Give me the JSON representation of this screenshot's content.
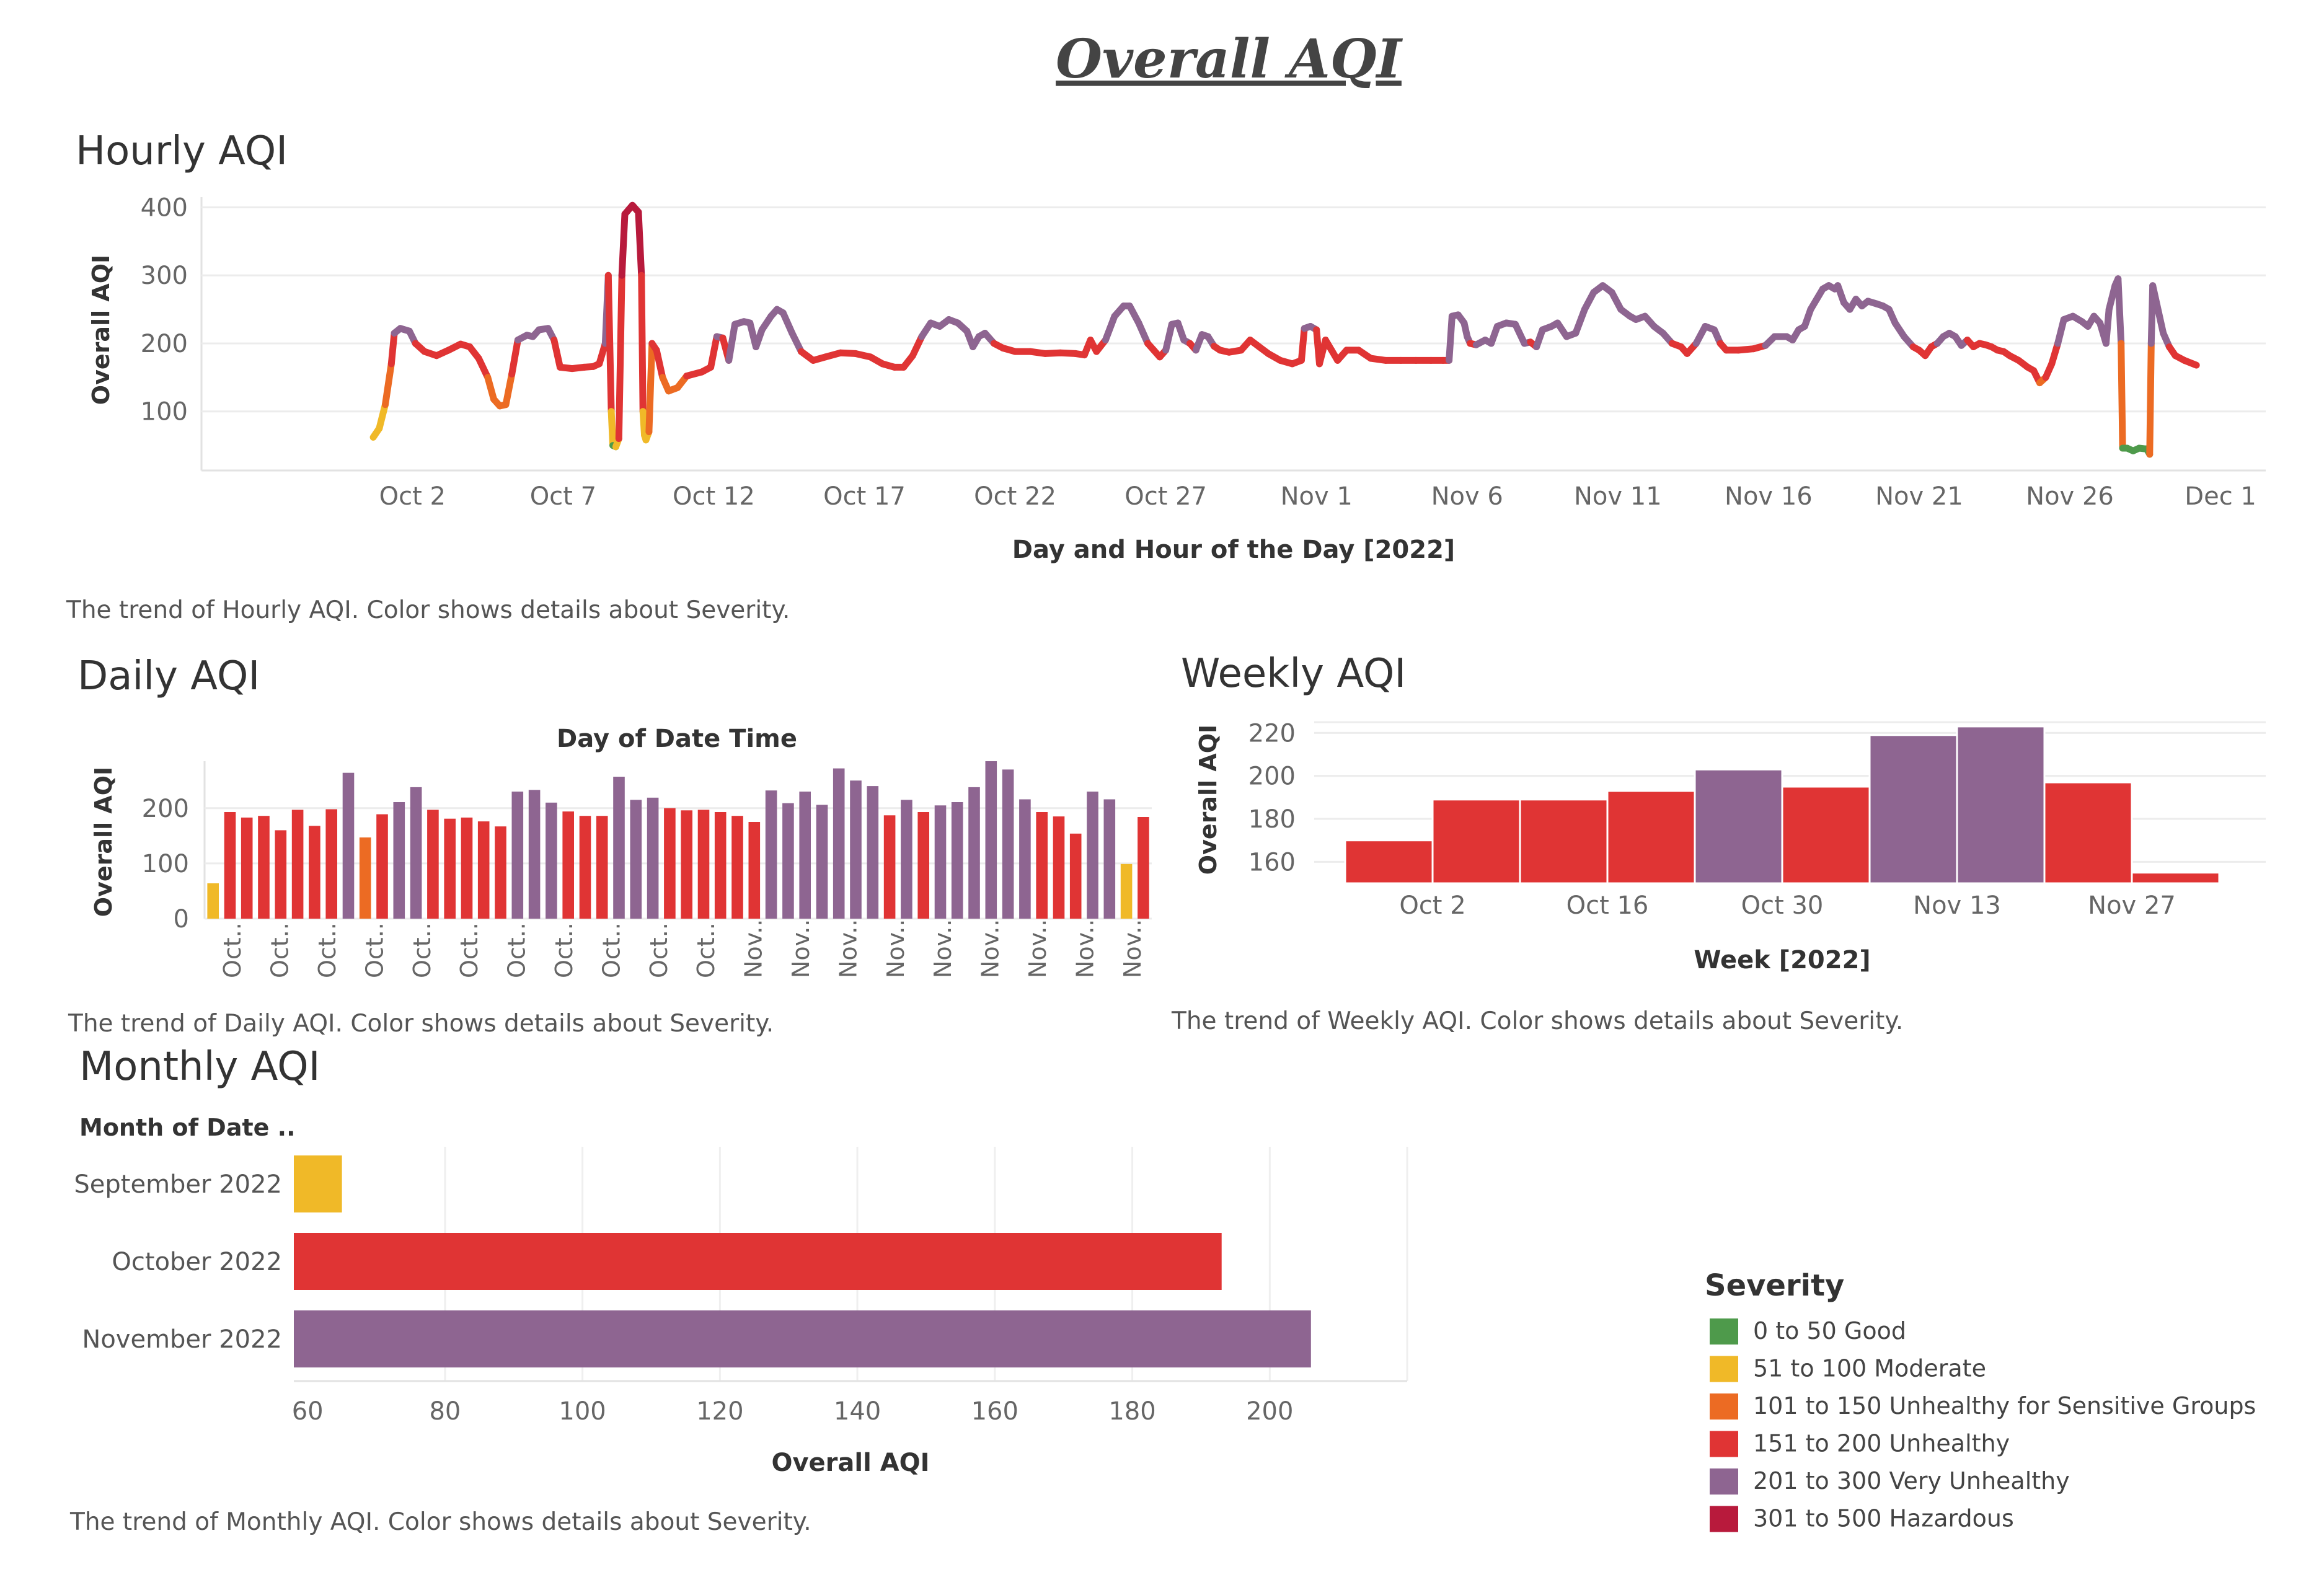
{
  "page": {
    "title": "Overall AQI"
  },
  "colors": {
    "good": "#4e9a4b",
    "moderate": "#f0b928",
    "usg": "#ec6b23",
    "unhealthy": "#e03434",
    "very_unhealthy": "#8e6591",
    "hazardous": "#b81a3c",
    "grid": "#ececec",
    "text": "#333333",
    "tick": "#666666"
  },
  "legend": {
    "title": "Severity",
    "items": [
      {
        "label": "0 to 50 Good",
        "color": "#4e9a4b"
      },
      {
        "label": "51 to 100 Moderate",
        "color": "#f0b928"
      },
      {
        "label": "101 to 150 Unhealthy for Sensitive Groups",
        "color": "#ec6b23"
      },
      {
        "label": "151 to 200 Unhealthy",
        "color": "#e03434"
      },
      {
        "label": "201 to 300 Very Unhealthy",
        "color": "#8e6591"
      },
      {
        "label": "301 to 500 Hazardous",
        "color": "#b81a3c"
      }
    ]
  },
  "chart_data": [
    {
      "id": "hourly",
      "type": "line",
      "title": "Hourly AQI",
      "xlabel": "Day and Hour of the Day [2022]",
      "ylabel": "Overall AQI",
      "caption": "The trend of Hourly AQI.  Color shows details about Severity.",
      "xlim": [
        -6.0,
        62.5
      ],
      "ylim": [
        15,
        415
      ],
      "y_ticks": [
        100,
        200,
        300,
        400
      ],
      "x_ticks": [
        {
          "x": 1,
          "label": "Oct 2"
        },
        {
          "x": 6,
          "label": "Oct 7"
        },
        {
          "x": 11,
          "label": "Oct 12"
        },
        {
          "x": 16,
          "label": "Oct 17"
        },
        {
          "x": 21,
          "label": "Oct 22"
        },
        {
          "x": 26,
          "label": "Oct 27"
        },
        {
          "x": 31,
          "label": "Nov 1"
        },
        {
          "x": 36,
          "label": "Nov 6"
        },
        {
          "x": 41,
          "label": "Nov 11"
        },
        {
          "x": 46,
          "label": "Nov 16"
        },
        {
          "x": 51,
          "label": "Nov 21"
        },
        {
          "x": 56,
          "label": "Nov 26"
        },
        {
          "x": 61,
          "label": "Dec 1"
        }
      ],
      "points": [
        [
          -0.3,
          62
        ],
        [
          -0.1,
          75
        ],
        [
          0.1,
          110
        ],
        [
          0.3,
          170
        ],
        [
          0.4,
          215
        ],
        [
          0.6,
          222
        ],
        [
          0.9,
          218
        ],
        [
          1.1,
          200
        ],
        [
          1.4,
          188
        ],
        [
          1.8,
          182
        ],
        [
          2.2,
          190
        ],
        [
          2.6,
          199
        ],
        [
          2.9,
          195
        ],
        [
          3.2,
          178
        ],
        [
          3.5,
          150
        ],
        [
          3.7,
          118
        ],
        [
          3.9,
          108
        ],
        [
          4.1,
          110
        ],
        [
          4.3,
          155
        ],
        [
          4.5,
          205
        ],
        [
          4.8,
          212
        ],
        [
          5.0,
          210
        ],
        [
          5.2,
          220
        ],
        [
          5.5,
          222
        ],
        [
          5.7,
          205
        ],
        [
          5.9,
          165
        ],
        [
          6.3,
          163
        ],
        [
          6.7,
          165
        ],
        [
          7.0,
          166
        ],
        [
          7.2,
          170
        ],
        [
          7.4,
          200
        ],
        [
          7.5,
          300
        ],
        [
          7.6,
          100
        ],
        [
          7.65,
          50
        ],
        [
          7.75,
          48
        ],
        [
          7.85,
          60
        ],
        [
          7.95,
          300
        ],
        [
          8.05,
          390
        ],
        [
          8.3,
          403
        ],
        [
          8.5,
          393
        ],
        [
          8.6,
          300
        ],
        [
          8.65,
          100
        ],
        [
          8.7,
          65
        ],
        [
          8.75,
          58
        ],
        [
          8.85,
          70
        ],
        [
          8.95,
          200
        ],
        [
          9.1,
          190
        ],
        [
          9.3,
          150
        ],
        [
          9.5,
          130
        ],
        [
          9.8,
          135
        ],
        [
          10.1,
          152
        ],
        [
          10.6,
          158
        ],
        [
          10.9,
          165
        ],
        [
          11.1,
          210
        ],
        [
          11.3,
          208
        ],
        [
          11.5,
          175
        ],
        [
          11.7,
          228
        ],
        [
          12.0,
          232
        ],
        [
          12.2,
          230
        ],
        [
          12.4,
          195
        ],
        [
          12.6,
          220
        ],
        [
          12.9,
          240
        ],
        [
          13.1,
          250
        ],
        [
          13.3,
          245
        ],
        [
          13.6,
          215
        ],
        [
          13.9,
          188
        ],
        [
          14.3,
          175
        ],
        [
          14.7,
          180
        ],
        [
          15.2,
          186
        ],
        [
          15.7,
          185
        ],
        [
          16.2,
          180
        ],
        [
          16.6,
          170
        ],
        [
          17.0,
          165
        ],
        [
          17.3,
          165
        ],
        [
          17.6,
          182
        ],
        [
          17.9,
          210
        ],
        [
          18.2,
          230
        ],
        [
          18.5,
          225
        ],
        [
          18.8,
          235
        ],
        [
          19.1,
          230
        ],
        [
          19.4,
          218
        ],
        [
          19.6,
          195
        ],
        [
          19.8,
          210
        ],
        [
          20.0,
          215
        ],
        [
          20.3,
          200
        ],
        [
          20.6,
          193
        ],
        [
          21.0,
          188
        ],
        [
          21.5,
          188
        ],
        [
          22.0,
          185
        ],
        [
          22.5,
          186
        ],
        [
          23.0,
          185
        ],
        [
          23.3,
          183
        ],
        [
          23.5,
          205
        ],
        [
          23.7,
          188
        ],
        [
          24.0,
          205
        ],
        [
          24.3,
          240
        ],
        [
          24.6,
          255
        ],
        [
          24.8,
          255
        ],
        [
          25.1,
          230
        ],
        [
          25.4,
          200
        ],
        [
          25.6,
          190
        ],
        [
          25.8,
          180
        ],
        [
          26.0,
          190
        ],
        [
          26.2,
          228
        ],
        [
          26.4,
          230
        ],
        [
          26.6,
          205
        ],
        [
          26.8,
          200
        ],
        [
          27.0,
          190
        ],
        [
          27.2,
          213
        ],
        [
          27.4,
          210
        ],
        [
          27.6,
          196
        ],
        [
          27.8,
          190
        ],
        [
          28.1,
          187
        ],
        [
          28.5,
          190
        ],
        [
          28.8,
          205
        ],
        [
          29.1,
          195
        ],
        [
          29.4,
          185
        ],
        [
          29.8,
          175
        ],
        [
          30.2,
          170
        ],
        [
          30.5,
          175
        ],
        [
          30.6,
          222
        ],
        [
          30.8,
          225
        ],
        [
          31.0,
          220
        ],
        [
          31.1,
          170
        ],
        [
          31.3,
          205
        ],
        [
          31.5,
          190
        ],
        [
          31.7,
          175
        ],
        [
          32.0,
          190
        ],
        [
          32.4,
          190
        ],
        [
          32.8,
          178
        ],
        [
          33.3,
          175
        ],
        [
          33.8,
          175
        ],
        [
          34.3,
          175
        ],
        [
          34.8,
          175
        ],
        [
          35.2,
          175
        ],
        [
          35.4,
          175
        ],
        [
          35.5,
          240
        ],
        [
          35.7,
          242
        ],
        [
          35.9,
          230
        ],
        [
          36.0,
          210
        ],
        [
          36.1,
          200
        ],
        [
          36.3,
          198
        ],
        [
          36.6,
          205
        ],
        [
          36.8,
          200
        ],
        [
          37.0,
          225
        ],
        [
          37.3,
          230
        ],
        [
          37.6,
          228
        ],
        [
          37.9,
          200
        ],
        [
          38.1,
          202
        ],
        [
          38.3,
          195
        ],
        [
          38.5,
          220
        ],
        [
          38.8,
          225
        ],
        [
          39.0,
          230
        ],
        [
          39.3,
          210
        ],
        [
          39.6,
          215
        ],
        [
          39.9,
          250
        ],
        [
          40.2,
          275
        ],
        [
          40.5,
          285
        ],
        [
          40.8,
          275
        ],
        [
          41.1,
          250
        ],
        [
          41.4,
          240
        ],
        [
          41.6,
          235
        ],
        [
          41.9,
          240
        ],
        [
          42.2,
          225
        ],
        [
          42.5,
          215
        ],
        [
          42.8,
          200
        ],
        [
          43.1,
          195
        ],
        [
          43.3,
          185
        ],
        [
          43.6,
          200
        ],
        [
          43.9,
          225
        ],
        [
          44.2,
          220
        ],
        [
          44.4,
          200
        ],
        [
          44.6,
          190
        ],
        [
          45.0,
          190
        ],
        [
          45.5,
          192
        ],
        [
          45.9,
          197
        ],
        [
          46.2,
          210
        ],
        [
          46.6,
          210
        ],
        [
          46.8,
          205
        ],
        [
          47.0,
          220
        ],
        [
          47.2,
          225
        ],
        [
          47.4,
          250
        ],
        [
          47.6,
          265
        ],
        [
          47.8,
          280
        ],
        [
          48.0,
          285
        ],
        [
          48.2,
          280
        ],
        [
          48.3,
          285
        ],
        [
          48.5,
          260
        ],
        [
          48.7,
          250
        ],
        [
          48.9,
          265
        ],
        [
          49.1,
          255
        ],
        [
          49.3,
          262
        ],
        [
          49.6,
          258
        ],
        [
          49.8,
          255
        ],
        [
          50.0,
          250
        ],
        [
          50.2,
          230
        ],
        [
          50.5,
          210
        ],
        [
          50.8,
          195
        ],
        [
          51.0,
          190
        ],
        [
          51.2,
          182
        ],
        [
          51.4,
          195
        ],
        [
          51.6,
          200
        ],
        [
          51.8,
          210
        ],
        [
          52.0,
          215
        ],
        [
          52.2,
          210
        ],
        [
          52.4,
          197
        ],
        [
          52.6,
          205
        ],
        [
          52.8,
          195
        ],
        [
          53.0,
          200
        ],
        [
          53.2,
          198
        ],
        [
          53.4,
          195
        ],
        [
          53.6,
          190
        ],
        [
          53.8,
          188
        ],
        [
          54.0,
          182
        ],
        [
          54.3,
          175
        ],
        [
          54.6,
          165
        ],
        [
          54.8,
          160
        ],
        [
          55.0,
          142
        ],
        [
          55.2,
          150
        ],
        [
          55.4,
          170
        ],
        [
          55.6,
          200
        ],
        [
          55.8,
          235
        ],
        [
          56.1,
          240
        ],
        [
          56.4,
          232
        ],
        [
          56.6,
          225
        ],
        [
          56.8,
          240
        ],
        [
          57.0,
          230
        ],
        [
          57.2,
          200
        ],
        [
          57.3,
          250
        ],
        [
          57.5,
          285
        ],
        [
          57.6,
          295
        ],
        [
          57.7,
          200
        ],
        [
          57.75,
          46
        ],
        [
          57.9,
          46
        ],
        [
          58.1,
          42
        ],
        [
          58.3,
          46
        ],
        [
          58.5,
          45
        ],
        [
          58.55,
          45
        ],
        [
          58.65,
          37
        ],
        [
          58.7,
          200
        ],
        [
          58.75,
          285
        ],
        [
          58.95,
          245
        ],
        [
          59.1,
          215
        ],
        [
          59.3,
          195
        ],
        [
          59.5,
          182
        ],
        [
          59.8,
          175
        ],
        [
          60.2,
          168
        ]
      ]
    },
    {
      "id": "daily",
      "type": "bar",
      "title": "Daily AQI",
      "top_axis_label": "Day of Date Time",
      "ylabel": "Overall AQI",
      "caption": "The trend of Daily AQI.  Color shows details about Severity.",
      "ylim": [
        0,
        285
      ],
      "y_ticks": [
        0,
        100,
        200
      ],
      "values": [
        64,
        193,
        183,
        186,
        160,
        197,
        168,
        198,
        264,
        147,
        189,
        211,
        238,
        197,
        181,
        183,
        176,
        167,
        230,
        233,
        210,
        194,
        186,
        186,
        257,
        215,
        219,
        200,
        196,
        197,
        193,
        186,
        175,
        232,
        209,
        230,
        206,
        272,
        250,
        240,
        187,
        215,
        193,
        205,
        211,
        238,
        285,
        270,
        216,
        193,
        185,
        154,
        230,
        216,
        99,
        184
      ],
      "tick_labels": [
        "Oct..",
        "Oct..",
        "Oct..",
        "Oct..",
        "Oct..",
        "Oct..",
        "Oct..",
        "Oct..",
        "Oct..",
        "Oct..",
        "Oct..",
        "Nov..",
        "Nov..",
        "Nov..",
        "Nov..",
        "Nov..",
        "Nov..",
        "Nov..",
        "Nov..",
        "Nov.."
      ]
    },
    {
      "id": "weekly",
      "type": "bar",
      "title": "Weekly AQI",
      "xlabel": "Week [2022]",
      "ylabel": "Overall AQI",
      "caption": "The trend of Weekly AQI.  Color shows details about Severity.",
      "ylim": [
        150,
        225
      ],
      "y_ticks": [
        160,
        180,
        200,
        220
      ],
      "values": [
        170,
        189,
        189,
        193,
        203,
        195,
        219,
        223,
        197,
        155
      ],
      "tick_labels": [
        {
          "bar": 1,
          "label": "Oct 2"
        },
        {
          "bar": 3,
          "label": "Oct 16"
        },
        {
          "bar": 5,
          "label": "Oct 30"
        },
        {
          "bar": 7,
          "label": "Nov 13"
        },
        {
          "bar": 9,
          "label": "Nov 27"
        }
      ]
    },
    {
      "id": "monthly",
      "type": "bar",
      "orientation": "horizontal",
      "title": "Monthly AQI",
      "row_header": "Month of Date ..",
      "xlabel": "Overall AQI",
      "caption": "The trend of Monthly AQI.  Color shows details about Severity.",
      "xlim": [
        58,
        220
      ],
      "x_ticks": [
        60,
        80,
        100,
        120,
        140,
        160,
        180,
        200
      ],
      "grid_x": [
        80,
        100,
        120,
        140,
        160,
        180,
        200,
        220
      ],
      "categories": [
        "September 2022",
        "October 2022",
        "November 2022"
      ],
      "values": [
        65,
        193,
        206
      ]
    }
  ]
}
